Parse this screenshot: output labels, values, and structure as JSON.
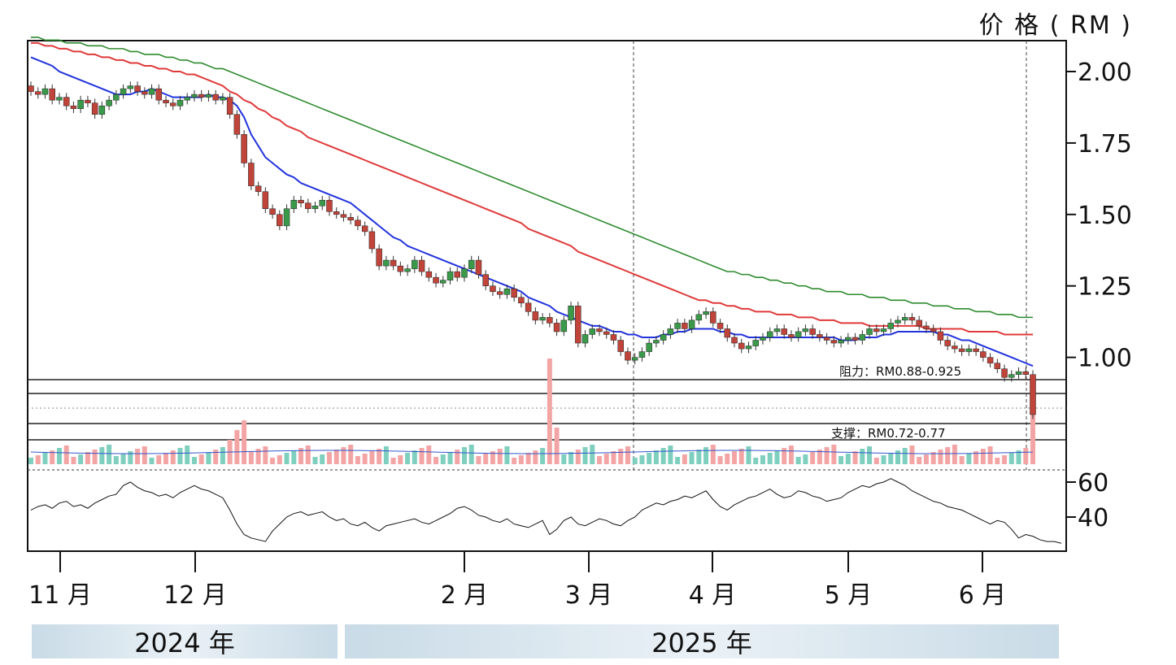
{
  "chart_data": [
    {
      "type": "candlestick",
      "title": "",
      "ylabel": "价格(RM)",
      "ylim": [
        0.62,
        2.12
      ],
      "yticks": [
        {
          "value": 2.0,
          "label": "2.00"
        },
        {
          "value": 1.75,
          "label": "1.75"
        },
        {
          "value": 1.5,
          "label": "1.50"
        },
        {
          "value": 1.25,
          "label": "1.25"
        },
        {
          "value": 1.0,
          "label": "1.00"
        }
      ],
      "xaxis": {
        "month_ticks": [
          "11 月",
          "12 月",
          "2 月",
          "3 月",
          "4 月",
          "5 月",
          "6 月"
        ],
        "year_bands": [
          "2024 年",
          "2025 年"
        ]
      },
      "levels": [
        {
          "label": "阻力：RM0.88-0.925",
          "low": 0.88,
          "high": 0.925
        },
        {
          "label": "支撑：RM0.72-0.77",
          "low": 0.72,
          "high": 0.77
        }
      ],
      "close": [
        1.93,
        1.92,
        1.94,
        1.9,
        1.91,
        1.88,
        1.87,
        1.9,
        1.89,
        1.85,
        1.88,
        1.9,
        1.92,
        1.94,
        1.95,
        1.93,
        1.92,
        1.94,
        1.9,
        1.89,
        1.88,
        1.9,
        1.91,
        1.92,
        1.91,
        1.92,
        1.9,
        1.91,
        1.85,
        1.78,
        1.68,
        1.6,
        1.58,
        1.52,
        1.5,
        1.46,
        1.52,
        1.55,
        1.54,
        1.52,
        1.53,
        1.55,
        1.51,
        1.5,
        1.49,
        1.48,
        1.46,
        1.44,
        1.38,
        1.32,
        1.34,
        1.32,
        1.3,
        1.31,
        1.34,
        1.3,
        1.28,
        1.26,
        1.27,
        1.3,
        1.28,
        1.31,
        1.34,
        1.29,
        1.25,
        1.23,
        1.22,
        1.24,
        1.21,
        1.19,
        1.16,
        1.13,
        1.14,
        1.12,
        1.09,
        1.13,
        1.18,
        1.05,
        1.08,
        1.1,
        1.09,
        1.08,
        1.06,
        1.02,
        0.99,
        1.0,
        1.02,
        1.05,
        1.06,
        1.08,
        1.1,
        1.12,
        1.1,
        1.13,
        1.15,
        1.16,
        1.12,
        1.1,
        1.07,
        1.05,
        1.03,
        1.04,
        1.06,
        1.07,
        1.09,
        1.1,
        1.08,
        1.07,
        1.09,
        1.1,
        1.08,
        1.07,
        1.06,
        1.05,
        1.06,
        1.07,
        1.06,
        1.08,
        1.1,
        1.09,
        1.1,
        1.12,
        1.13,
        1.14,
        1.13,
        1.11,
        1.1,
        1.09,
        1.06,
        1.04,
        1.03,
        1.02,
        1.03,
        1.02,
        1.0,
        0.98,
        0.96,
        0.93,
        0.94,
        0.95,
        0.94,
        0.8
      ],
      "sma_20": [
        2.05,
        2.04,
        2.03,
        2.02,
        2.0,
        1.99,
        1.98,
        1.97,
        1.96,
        1.95,
        1.94,
        1.93,
        1.92,
        1.92,
        1.92,
        1.93,
        1.93,
        1.94,
        1.93,
        1.92,
        1.91,
        1.91,
        1.91,
        1.91,
        1.91,
        1.92,
        1.91,
        1.91,
        1.9,
        1.88,
        1.84,
        1.78,
        1.74,
        1.7,
        1.68,
        1.66,
        1.64,
        1.63,
        1.61,
        1.6,
        1.59,
        1.58,
        1.57,
        1.56,
        1.55,
        1.54,
        1.52,
        1.5,
        1.48,
        1.46,
        1.44,
        1.42,
        1.41,
        1.39,
        1.38,
        1.37,
        1.36,
        1.35,
        1.34,
        1.33,
        1.32,
        1.31,
        1.3,
        1.29,
        1.28,
        1.27,
        1.26,
        1.25,
        1.24,
        1.23,
        1.21,
        1.2,
        1.19,
        1.18,
        1.16,
        1.15,
        1.14,
        1.13,
        1.12,
        1.11,
        1.11,
        1.1,
        1.09,
        1.09,
        1.08,
        1.08,
        1.07,
        1.07,
        1.07,
        1.08,
        1.08,
        1.09,
        1.09,
        1.1,
        1.1,
        1.1,
        1.1,
        1.09,
        1.09,
        1.08,
        1.08,
        1.07,
        1.07,
        1.07,
        1.07,
        1.07,
        1.07,
        1.07,
        1.07,
        1.07,
        1.07,
        1.07,
        1.07,
        1.07,
        1.06,
        1.06,
        1.06,
        1.07,
        1.07,
        1.07,
        1.08,
        1.08,
        1.09,
        1.09,
        1.09,
        1.09,
        1.09,
        1.09,
        1.08,
        1.08,
        1.07,
        1.06,
        1.06,
        1.05,
        1.04,
        1.03,
        1.02,
        1.01,
        1.0,
        0.99,
        0.98,
        0.97
      ],
      "sma_50": [
        2.1,
        2.1,
        2.09,
        2.09,
        2.08,
        2.08,
        2.07,
        2.07,
        2.06,
        2.06,
        2.05,
        2.05,
        2.04,
        2.04,
        2.03,
        2.03,
        2.02,
        2.02,
        2.01,
        2.01,
        2.0,
        2.0,
        1.99,
        1.99,
        1.98,
        1.97,
        1.96,
        1.95,
        1.93,
        1.92,
        1.9,
        1.89,
        1.87,
        1.86,
        1.84,
        1.83,
        1.81,
        1.8,
        1.79,
        1.77,
        1.76,
        1.75,
        1.74,
        1.73,
        1.72,
        1.71,
        1.7,
        1.69,
        1.68,
        1.67,
        1.66,
        1.65,
        1.64,
        1.63,
        1.62,
        1.61,
        1.6,
        1.59,
        1.58,
        1.57,
        1.56,
        1.55,
        1.54,
        1.53,
        1.52,
        1.51,
        1.5,
        1.49,
        1.48,
        1.47,
        1.45,
        1.44,
        1.43,
        1.42,
        1.41,
        1.4,
        1.39,
        1.37,
        1.36,
        1.35,
        1.34,
        1.33,
        1.32,
        1.31,
        1.3,
        1.29,
        1.28,
        1.27,
        1.26,
        1.25,
        1.24,
        1.23,
        1.22,
        1.21,
        1.2,
        1.2,
        1.19,
        1.19,
        1.18,
        1.18,
        1.17,
        1.17,
        1.16,
        1.16,
        1.16,
        1.15,
        1.15,
        1.15,
        1.14,
        1.14,
        1.14,
        1.13,
        1.13,
        1.13,
        1.12,
        1.12,
        1.12,
        1.12,
        1.11,
        1.11,
        1.11,
        1.11,
        1.11,
        1.11,
        1.11,
        1.11,
        1.1,
        1.1,
        1.1,
        1.1,
        1.1,
        1.1,
        1.09,
        1.09,
        1.09,
        1.09,
        1.09,
        1.08,
        1.08,
        1.08,
        1.08,
        1.08
      ],
      "sma_100": [
        2.12,
        2.12,
        2.11,
        2.11,
        2.11,
        2.1,
        2.1,
        2.1,
        2.09,
        2.09,
        2.09,
        2.08,
        2.08,
        2.08,
        2.07,
        2.07,
        2.06,
        2.06,
        2.06,
        2.05,
        2.05,
        2.04,
        2.04,
        2.03,
        2.03,
        2.02,
        2.01,
        2.01,
        2.0,
        1.99,
        1.98,
        1.97,
        1.96,
        1.95,
        1.94,
        1.93,
        1.92,
        1.91,
        1.9,
        1.89,
        1.88,
        1.87,
        1.86,
        1.85,
        1.84,
        1.83,
        1.82,
        1.81,
        1.8,
        1.79,
        1.78,
        1.77,
        1.76,
        1.75,
        1.74,
        1.73,
        1.72,
        1.71,
        1.7,
        1.69,
        1.68,
        1.67,
        1.66,
        1.65,
        1.64,
        1.63,
        1.62,
        1.61,
        1.6,
        1.59,
        1.58,
        1.57,
        1.56,
        1.55,
        1.54,
        1.53,
        1.52,
        1.51,
        1.5,
        1.49,
        1.48,
        1.47,
        1.46,
        1.45,
        1.44,
        1.43,
        1.42,
        1.41,
        1.4,
        1.39,
        1.38,
        1.37,
        1.36,
        1.35,
        1.34,
        1.33,
        1.32,
        1.31,
        1.3,
        1.3,
        1.29,
        1.29,
        1.28,
        1.28,
        1.27,
        1.27,
        1.26,
        1.26,
        1.25,
        1.25,
        1.24,
        1.24,
        1.23,
        1.23,
        1.23,
        1.22,
        1.22,
        1.22,
        1.21,
        1.21,
        1.21,
        1.2,
        1.2,
        1.2,
        1.19,
        1.19,
        1.19,
        1.18,
        1.18,
        1.18,
        1.17,
        1.17,
        1.17,
        1.16,
        1.16,
        1.16,
        1.15,
        1.15,
        1.15,
        1.14,
        1.14,
        1.14
      ]
    },
    {
      "type": "line",
      "title": "",
      "ylim": [
        20,
        75
      ],
      "yticks": [
        {
          "value": 60,
          "label": "60"
        },
        {
          "value": 40,
          "label": "40"
        }
      ],
      "rsi": [
        44,
        46,
        47,
        45,
        48,
        49,
        46,
        47,
        45,
        48,
        50,
        52,
        53,
        58,
        60,
        57,
        55,
        54,
        52,
        53,
        51,
        54,
        56,
        58,
        56,
        55,
        53,
        51,
        44,
        36,
        30,
        28,
        27,
        26,
        32,
        36,
        40,
        42,
        43,
        41,
        42,
        43,
        40,
        38,
        39,
        36,
        35,
        37,
        34,
        32,
        35,
        36,
        37,
        38,
        39,
        37,
        36,
        38,
        40,
        42,
        45,
        46,
        44,
        41,
        40,
        38,
        37,
        39,
        36,
        35,
        34,
        36,
        38,
        30,
        33,
        38,
        40,
        36,
        35,
        37,
        39,
        38,
        36,
        35,
        38,
        40,
        44,
        46,
        48,
        47,
        49,
        50,
        52,
        51,
        53,
        55,
        50,
        46,
        44,
        47,
        49,
        51,
        52,
        54,
        56,
        53,
        51,
        52,
        55,
        54,
        52,
        51,
        49,
        50,
        51,
        54,
        56,
        58,
        57,
        59,
        60,
        62,
        60,
        58,
        55,
        53,
        51,
        49,
        48,
        46,
        45,
        44,
        42,
        40,
        38,
        36,
        38,
        37,
        33,
        28,
        30,
        29,
        27,
        26,
        26,
        25
      ]
    }
  ],
  "ui": {
    "price_unit": "价 格 ( RM )",
    "year_2024": "2024 年",
    "year_2025": "2025 年"
  }
}
